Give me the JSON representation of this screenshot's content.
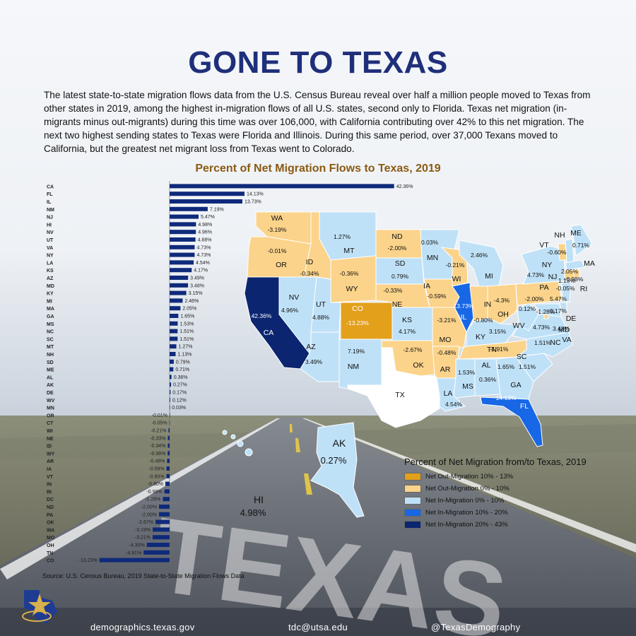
{
  "header": {
    "title": "GONE TO TEXAS",
    "intro": "The latest state-to-state migration flows data from the U.S. Census Bureau reveal over half a million people moved to Texas from other states in 2019, among the highest in-migration flows of all U.S. states, second only to Florida. Texas net migration (in-migrants minus out-migrants) during this time was over 106,000, with California contributing over 42% to this net migration. The next two highest sending states to Texas were Florida and Illinois. During this same period, over 37,000 Texans moved to California, but the greatest net migrant loss from Texas went to Colorado."
  },
  "background": {
    "watermark_text": "TEXAS"
  },
  "chart_data": [
    {
      "type": "bar",
      "orientation": "horizontal",
      "title": "Percent of Net Migration Flows to Texas, 2019",
      "xlabel": "",
      "ylabel": "",
      "xlim": [
        -13.23,
        42.36
      ],
      "bar_color": "#0f2a7a",
      "categories": [
        "CA",
        "FL",
        "IL",
        "NM",
        "NJ",
        "HI",
        "NV",
        "UT",
        "VA",
        "NY",
        "LA",
        "KS",
        "AZ",
        "MD",
        "KY",
        "MI",
        "MA",
        "GA",
        "MS",
        "NC",
        "SC",
        "MT",
        "NH",
        "SD",
        "ME",
        "AL",
        "AK",
        "DE",
        "WV",
        "MN",
        "OR",
        "CT",
        "WI",
        "NE",
        "ID",
        "WY",
        "AR",
        "IA",
        "VT",
        "IN",
        "RI",
        "DC",
        "ND",
        "PA",
        "OK",
        "WA",
        "MO",
        "OH",
        "TN",
        "CO"
      ],
      "values": [
        42.36,
        14.13,
        13.73,
        7.19,
        5.47,
        4.98,
        4.96,
        4.88,
        4.73,
        4.73,
        4.54,
        4.17,
        3.49,
        3.48,
        3.15,
        2.46,
        2.05,
        1.65,
        1.53,
        1.51,
        1.51,
        1.27,
        1.13,
        0.79,
        0.71,
        0.36,
        0.27,
        0.17,
        0.12,
        0.03,
        -0.01,
        -0.05,
        -0.21,
        -0.33,
        -0.34,
        -0.36,
        -0.48,
        -0.59,
        -0.6,
        -0.8,
        -0.98,
        -1.28,
        -2.0,
        -2.0,
        -2.67,
        -3.19,
        -3.21,
        -4.3,
        -4.91,
        -13.23
      ],
      "value_labels": [
        "42.36%",
        "14.13%",
        "13.73%",
        "7.19%",
        "5.47%",
        "4.98%",
        "4.96%",
        "4.88%",
        "4.73%",
        "4.73%",
        "4.54%",
        "4.17%",
        "3.49%",
        "3.48%",
        "3.15%",
        "2.46%",
        "2.05%",
        "1.65%",
        "1.53%",
        "1.51%",
        "1.51%",
        "1.27%",
        "1.13%",
        "0.79%",
        "0.71%",
        "0.36%",
        "0.27%",
        "0.17%",
        "0.12%",
        "0.03%",
        "-0.01%",
        "-0.05%",
        "-0.21%",
        "-0.33%",
        "-0.34%",
        "-0.36%",
        "-0.48%",
        "-0.59%",
        "-0.60%",
        "-0.80%",
        "-0.98%",
        "-1.28%",
        "-2.00%",
        "-2.00%",
        "-2.67%",
        "-3.19%",
        "-3.21%",
        "-4.30%",
        "-4.91%",
        "-13.23%"
      ]
    },
    {
      "type": "choropleth-map",
      "title": "Percent of Net Migration from/to Texas, 2019",
      "legend": [
        {
          "label": "Net Out-Migration 10% - 13%",
          "color": "#e3a01b"
        },
        {
          "label": "Net Out-Migration 0% - 10%",
          "color": "#fbd38a"
        },
        {
          "label": "Net In-Migration 0% - 10%",
          "color": "#bfe1f7"
        },
        {
          "label": "Net In-Migration 10% - 20%",
          "color": "#1767e6"
        },
        {
          "label": "Net In-Migration 20% - 43%",
          "color": "#0b2570"
        }
      ],
      "states": [
        {
          "abbr": "WA",
          "value": "-3.19%",
          "class": 1
        },
        {
          "abbr": "OR",
          "value": "-0.01%",
          "class": 1
        },
        {
          "abbr": "CA",
          "value": "42.36%",
          "class": 4
        },
        {
          "abbr": "NV",
          "value": "4.96%",
          "class": 2
        },
        {
          "abbr": "ID",
          "value": "-0.34%",
          "class": 1
        },
        {
          "abbr": "MT",
          "value": "1.27%",
          "class": 2
        },
        {
          "abbr": "WY",
          "value": "-0.36%",
          "class": 1
        },
        {
          "abbr": "UT",
          "value": "4.88%",
          "class": 2
        },
        {
          "abbr": "AZ",
          "value": "3.49%",
          "class": 2
        },
        {
          "abbr": "CO",
          "value": "-13.23%",
          "class": 0
        },
        {
          "abbr": "NM",
          "value": "7.19%",
          "class": 2
        },
        {
          "abbr": "ND",
          "value": "-2.00%",
          "class": 1
        },
        {
          "abbr": "SD",
          "value": "0.79%",
          "class": 2
        },
        {
          "abbr": "NE",
          "value": "-0.33%",
          "class": 1
        },
        {
          "abbr": "KS",
          "value": "4.17%",
          "class": 2
        },
        {
          "abbr": "OK",
          "value": "-2.67%",
          "class": 1
        },
        {
          "abbr": "TX",
          "value": "",
          "class": -1
        },
        {
          "abbr": "MN",
          "value": "0.03%",
          "class": 2
        },
        {
          "abbr": "IA",
          "value": "-0.59%",
          "class": 1
        },
        {
          "abbr": "MO",
          "value": "-3.21%",
          "class": 1
        },
        {
          "abbr": "AR",
          "value": "-0.48%",
          "class": 1
        },
        {
          "abbr": "LA",
          "value": "4.54%",
          "class": 2
        },
        {
          "abbr": "WI",
          "value": "-0.21%",
          "class": 1
        },
        {
          "abbr": "IL",
          "value": "13.73%",
          "class": 3
        },
        {
          "abbr": "MI",
          "value": "2.46%",
          "class": 2
        },
        {
          "abbr": "IN",
          "value": "-0.80%",
          "class": 1
        },
        {
          "abbr": "OH",
          "value": "-4.3%",
          "class": 1
        },
        {
          "abbr": "KY",
          "value": "3.15%",
          "class": 2
        },
        {
          "abbr": "TN",
          "value": "-4.91%",
          "class": 1
        },
        {
          "abbr": "MS",
          "value": "1.53%",
          "class": 2
        },
        {
          "abbr": "AL",
          "value": "0.36%",
          "class": 2
        },
        {
          "abbr": "GA",
          "value": "1.65%",
          "class": 2
        },
        {
          "abbr": "FL",
          "value": "14.13%",
          "class": 3
        },
        {
          "abbr": "SC",
          "value": "1.51%",
          "class": 2
        },
        {
          "abbr": "NC",
          "value": "1.51%",
          "class": 2
        },
        {
          "abbr": "VA",
          "value": "4.73%",
          "class": 2
        },
        {
          "abbr": "WV",
          "value": "0.12%",
          "class": 2
        },
        {
          "abbr": "PA",
          "value": "-2.00%",
          "class": 1
        },
        {
          "abbr": "NY",
          "value": "4.73%",
          "class": 2
        },
        {
          "abbr": "VT",
          "value": "-0.60%",
          "class": 1
        },
        {
          "abbr": "NH",
          "value": "1.13%",
          "class": 2
        },
        {
          "abbr": "ME",
          "value": "0.71%",
          "class": 2
        },
        {
          "abbr": "MA",
          "value": "2.05%",
          "class": 2
        },
        {
          "abbr": "RI",
          "value": "-0.98%",
          "class": 1
        },
        {
          "abbr": "CT",
          "value": "-0.05%",
          "class": 1
        },
        {
          "abbr": "NJ",
          "value": "5.47%",
          "class": 2
        },
        {
          "abbr": "DE",
          "value": "0.17%",
          "class": 2
        },
        {
          "abbr": "MD",
          "value": "3.48%",
          "class": 2
        },
        {
          "abbr": "DC",
          "value": "-1.28%",
          "class": 1
        },
        {
          "abbr": "AK",
          "value": "0.27%",
          "class": 2
        },
        {
          "abbr": "HI",
          "value": "4.98%",
          "class": 2
        }
      ]
    }
  ],
  "source": "Source: U.S. Census Bureau, 2019 State-to-State Migration Flows Data",
  "footer": {
    "website": "demographics.texas.gov",
    "email": "tdc@utsa.edu",
    "twitter": "@TexasDemography"
  }
}
